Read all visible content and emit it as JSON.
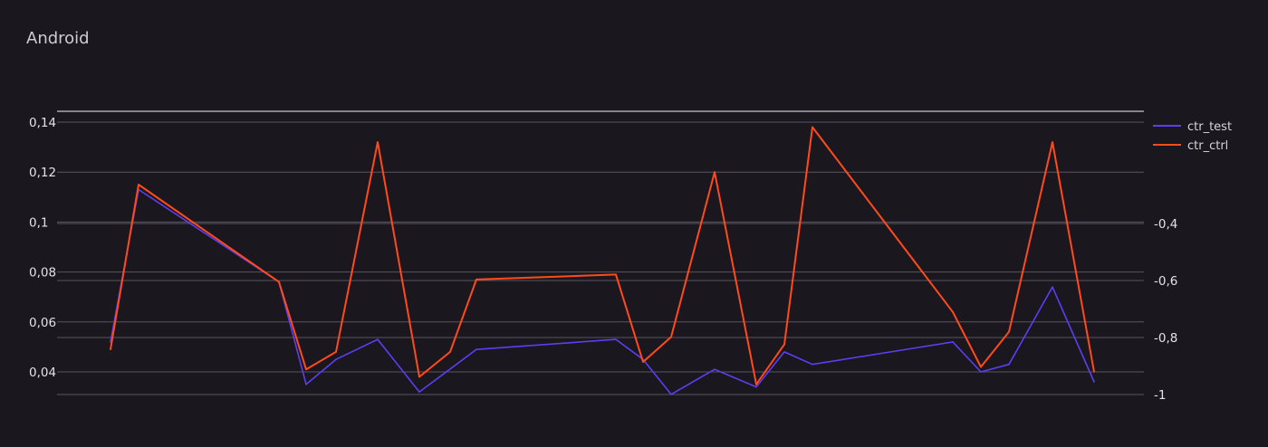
{
  "chart_data": {
    "type": "line",
    "title": "Android",
    "y_left": {
      "ticks": [
        0.04,
        0.06,
        0.08,
        0.1,
        0.12,
        0.14
      ],
      "tick_labels": [
        "0,04",
        "0,06",
        "0,08",
        "0,1",
        "0,12",
        "0,14"
      ],
      "range": [
        0.031,
        0.144
      ]
    },
    "y_right": {
      "ticks": [
        -1,
        -0.8,
        -0.6,
        -0.4
      ],
      "tick_labels": [
        "-1",
        "-0,8",
        "-0,6",
        "-0,4"
      ],
      "range": [
        -1,
        -0.06
      ]
    },
    "grid": true,
    "legend": {
      "placement": "top-right"
    },
    "series": [
      {
        "name": "ctr_test",
        "color": "#5b3ff2",
        "axis": "left",
        "values": [
          0.052,
          0.113,
          0.076,
          0.035,
          0.045,
          0.053,
          0.032,
          0.049,
          0.053,
          0.045,
          0.031,
          0.041,
          0.034,
          0.048,
          0.043,
          0.052,
          0.04,
          0.043,
          0.074,
          0.036
        ]
      },
      {
        "name": "ctr_ctrl",
        "color": "#ff4a1c",
        "axis": "left",
        "values": [
          0.049,
          0.115,
          0.076,
          0.041,
          0.048,
          0.132,
          0.038,
          0.048,
          0.077,
          0.079,
          0.044,
          0.054,
          0.12,
          0.035,
          0.051,
          0.138,
          0.064,
          0.042,
          0.056,
          0.132,
          0.04
        ]
      }
    ],
    "x_positions_note": ""
  }
}
